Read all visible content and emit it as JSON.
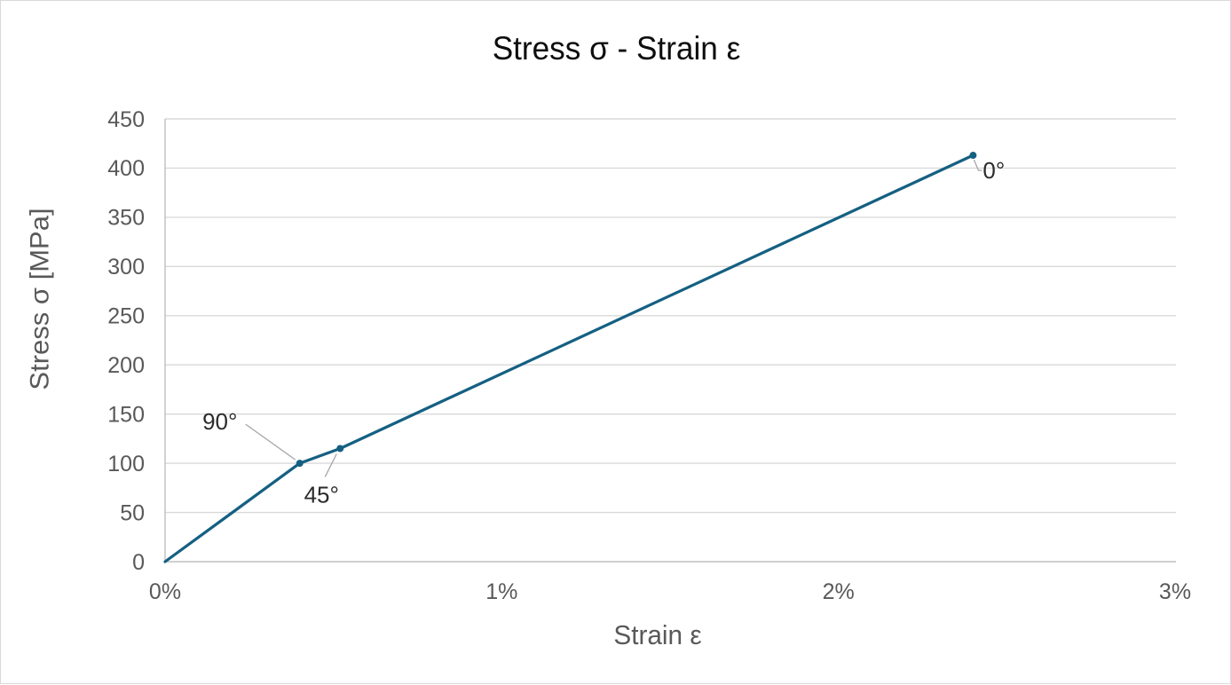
{
  "chart_data": {
    "type": "line",
    "title": "Stress σ - Strain ε",
    "xlabel": "Strain ε",
    "ylabel": "Stress σ [MPa]",
    "xlim": [
      0,
      3
    ],
    "ylim": [
      0,
      450
    ],
    "x_ticks": [
      {
        "value": 0,
        "label": "0%"
      },
      {
        "value": 1,
        "label": "1%"
      },
      {
        "value": 2,
        "label": "2%"
      },
      {
        "value": 3,
        "label": "3%"
      }
    ],
    "y_ticks": [
      0,
      50,
      100,
      150,
      200,
      250,
      300,
      350,
      400,
      450
    ],
    "grid": "horizontal-only",
    "legend": "none",
    "series": [
      {
        "name": "stress-strain-curve",
        "color": "#156082",
        "marker": "circle",
        "points": [
          {
            "x": 0,
            "y": 0
          },
          {
            "x": 0.4,
            "y": 100,
            "label": "90°",
            "label_placement": "upper-left"
          },
          {
            "x": 0.52,
            "y": 115,
            "label": "45°",
            "label_placement": "lower-left"
          },
          {
            "x": 2.4,
            "y": 413,
            "label": "0°",
            "label_placement": "right-below"
          }
        ]
      }
    ]
  },
  "colors": {
    "series_line": "#156082",
    "gridline": "#d9d9d9",
    "axis_line": "#bfbfbf",
    "tick_label": "#595959",
    "axis_title": "#595959",
    "chart_title": "#0e0e0e",
    "data_label": "#2b2b2b",
    "leader_line": "#a6a6a6",
    "chart_border": "#d9d9d9",
    "background": "#ffffff"
  }
}
